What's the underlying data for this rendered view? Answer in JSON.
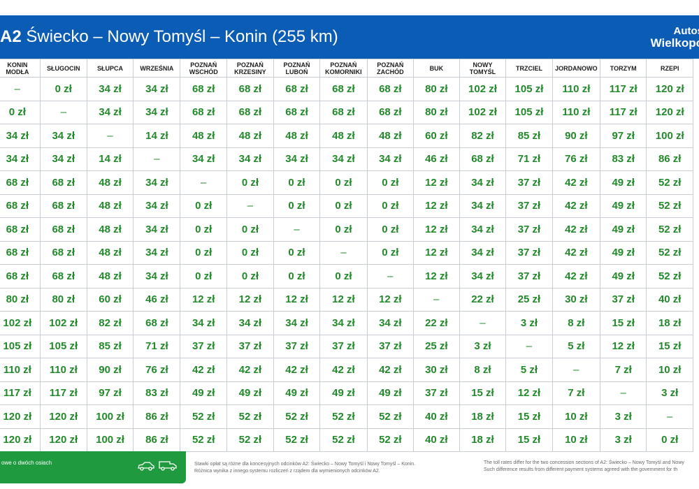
{
  "header": {
    "route_code": "A2",
    "route_title": "Świecko – Nowy Tomyśl – Konin (255 km)",
    "brand_line1": "Autos",
    "brand_line2": "Wielkopo"
  },
  "table": {
    "columns": [
      [
        "KONIN",
        "MODŁA"
      ],
      [
        "SŁUGOCIN"
      ],
      [
        "SŁUPCA"
      ],
      [
        "WRZEŚNIA"
      ],
      [
        "POZNAŃ",
        "WSCHÓD"
      ],
      [
        "POZNAŃ",
        "KRZESINY"
      ],
      [
        "POZNAŃ",
        "LUBOŃ"
      ],
      [
        "POZNAŃ",
        "KOMORNIKI"
      ],
      [
        "POZNAŃ",
        "ZACHÓD"
      ],
      [
        "BUK"
      ],
      [
        "NOWY",
        "TOMYŚL"
      ],
      [
        "TRZCIEL"
      ],
      [
        "JORDANOWO"
      ],
      [
        "TORZYM"
      ],
      [
        "RZEPI"
      ]
    ],
    "rows": [
      [
        "–",
        "0 zł",
        "34 zł",
        "34 zł",
        "68 zł",
        "68 zł",
        "68 zł",
        "68 zł",
        "68 zł",
        "80 zł",
        "102 zł",
        "105 zł",
        "110 zł",
        "117 zł",
        "120 zł"
      ],
      [
        "0 zł",
        "–",
        "34 zł",
        "34 zł",
        "68 zł",
        "68 zł",
        "68 zł",
        "68 zł",
        "68 zł",
        "80 zł",
        "102 zł",
        "105 zł",
        "110 zł",
        "117 zł",
        "120 zł"
      ],
      [
        "34 zł",
        "34 zł",
        "–",
        "14 zł",
        "48 zł",
        "48 zł",
        "48 zł",
        "48 zł",
        "48 zł",
        "60 zł",
        "82 zł",
        "85 zł",
        "90 zł",
        "97 zł",
        "100 zł"
      ],
      [
        "34 zł",
        "34 zł",
        "14 zł",
        "–",
        "34 zł",
        "34 zł",
        "34 zł",
        "34 zł",
        "34 zł",
        "46 zł",
        "68 zł",
        "71 zł",
        "76 zł",
        "83 zł",
        "86 zł"
      ],
      [
        "68 zł",
        "68 zł",
        "48 zł",
        "34 zł",
        "–",
        "0 zł",
        "0 zł",
        "0 zł",
        "0 zł",
        "12 zł",
        "34 zł",
        "37 zł",
        "42 zł",
        "49 zł",
        "52 zł"
      ],
      [
        "68 zł",
        "68 zł",
        "48 zł",
        "34 zł",
        "0 zł",
        "–",
        "0 zł",
        "0 zł",
        "0 zł",
        "12 zł",
        "34 zł",
        "37 zł",
        "42 zł",
        "49 zł",
        "52 zł"
      ],
      [
        "68 zł",
        "68 zł",
        "48 zł",
        "34 zł",
        "0 zł",
        "0 zł",
        "–",
        "0 zł",
        "0 zł",
        "12 zł",
        "34 zł",
        "37 zł",
        "42 zł",
        "49 zł",
        "52 zł"
      ],
      [
        "68 zł",
        "68 zł",
        "48 zł",
        "34 zł",
        "0 zł",
        "0 zł",
        "0 zł",
        "–",
        "0 zł",
        "12 zł",
        "34 zł",
        "37 zł",
        "42 zł",
        "49 zł",
        "52 zł"
      ],
      [
        "68 zł",
        "68 zł",
        "48 zł",
        "34 zł",
        "0 zł",
        "0 zł",
        "0 zł",
        "0 zł",
        "–",
        "12 zł",
        "34 zł",
        "37 zł",
        "42 zł",
        "49 zł",
        "52 zł"
      ],
      [
        "80 zł",
        "80 zł",
        "60 zł",
        "46 zł",
        "12 zł",
        "12 zł",
        "12 zł",
        "12 zł",
        "12 zł",
        "–",
        "22 zł",
        "25 zł",
        "30 zł",
        "37 zł",
        "40 zł"
      ],
      [
        "102 zł",
        "102 zł",
        "82 zł",
        "68 zł",
        "34 zł",
        "34 zł",
        "34 zł",
        "34 zł",
        "34 zł",
        "22 zł",
        "–",
        "3 zł",
        "8 zł",
        "15 zł",
        "18 zł"
      ],
      [
        "105 zł",
        "105 zł",
        "85 zł",
        "71 zł",
        "37 zł",
        "37 zł",
        "37 zł",
        "37 zł",
        "37 zł",
        "25 zł",
        "3 zł",
        "–",
        "5 zł",
        "12 zł",
        "15 zł"
      ],
      [
        "110 zł",
        "110 zł",
        "90 zł",
        "76 zł",
        "42 zł",
        "42 zł",
        "42 zł",
        "42 zł",
        "42 zł",
        "30 zł",
        "8 zł",
        "5 zł",
        "–",
        "7 zł",
        "10 zł"
      ],
      [
        "117 zł",
        "117 zł",
        "97 zł",
        "83 zł",
        "49 zł",
        "49 zł",
        "49 zł",
        "49 zł",
        "49 zł",
        "37 zł",
        "15 zł",
        "12 zł",
        "7 zł",
        "–",
        "3 zł"
      ],
      [
        "120 zł",
        "120 zł",
        "100 zł",
        "86 zł",
        "52 zł",
        "52 zł",
        "52 zł",
        "52 zł",
        "52 zł",
        "40 zł",
        "18 zł",
        "15 zł",
        "10 zł",
        "3 zł",
        "–"
      ],
      [
        "120 zł",
        "120 zł",
        "100 zł",
        "86 zł",
        "52 zł",
        "52 zł",
        "52 zł",
        "52 zł",
        "52 zł",
        "40 zł",
        "18 zł",
        "15 zł",
        "10 zł",
        "3 zł",
        "0 zł"
      ]
    ]
  },
  "footer": {
    "vehicle_class": "owe o dwóch osiach",
    "car_icon": "car-icon",
    "van_icon": "van-icon",
    "note_pl_line1": "Stawki opłat są różne dla koncesyjnych odcinków A2: Świecko – Nowy Tomyśl i Nowy Tomyśl – Konin.",
    "note_pl_line2": "Różnica wynika z innego systemu rozliczeń z rządem dla wymienionych odcinków A2.",
    "note_en_line1": "The toll rates differ for the two concession sections of A2: Świecko – Nowy Tomyśl and Nowy",
    "note_en_line2": "Such difference results from different payment systems agreed with the government for th"
  },
  "colors": {
    "header_blue": "#0b5cb5",
    "price_green": "#238a2b",
    "footer_green": "#1f9a3e"
  }
}
